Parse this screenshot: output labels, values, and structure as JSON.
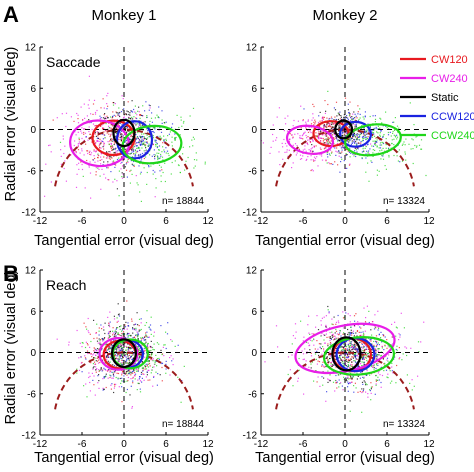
{
  "chart_data": {
    "type": "scatter",
    "panel_letters": [
      "A",
      "B"
    ],
    "column_titles": [
      "Monkey 1",
      "Monkey 2"
    ],
    "xlabel": "Tangential error (visual deg)",
    "ylabel": "Radial error (visual deg)",
    "xlim": [
      -12,
      12
    ],
    "ylim": [
      -12,
      12
    ],
    "x_ticks": [
      -12,
      -6,
      0,
      6,
      12
    ],
    "y_ticks": [
      -12,
      -6,
      0,
      6,
      12
    ],
    "x_tick_labels": [
      "-12",
      "-6",
      "0",
      "6",
      "12"
    ],
    "y_tick_labels": [
      "-12",
      "-6",
      "0",
      "6",
      "12"
    ],
    "grid": false,
    "legend": {
      "location": "top-right of Monkey 2 saccade panel",
      "entries": [
        {
          "label": "CW120",
          "color": "#e8191f"
        },
        {
          "label": "CW240",
          "color": "#e81ee8"
        },
        {
          "label": "Static",
          "color": "#000000"
        },
        {
          "label": "CCW120",
          "color": "#1a22e0"
        },
        {
          "label": "CCW240",
          "color": "#1fd619"
        }
      ]
    },
    "reference": {
      "description": "dashed dark-red arc",
      "color": "#9b1c1c"
    },
    "panels": [
      {
        "row": "A",
        "column": "Monkey 1",
        "label": "Saccade",
        "n_label": "n= 18844",
        "ellipses": [
          {
            "series": "CW120",
            "cx": -1.5,
            "cy": -1.2,
            "rx": 3.0,
            "ry": 2.5,
            "angle": 0
          },
          {
            "series": "CW240",
            "cx": -3.5,
            "cy": -2.0,
            "rx": 4.2,
            "ry": 3.3,
            "angle": -5
          },
          {
            "series": "Static",
            "cx": 0.0,
            "cy": -0.5,
            "rx": 1.5,
            "ry": 1.9,
            "angle": 0
          },
          {
            "series": "CCW120",
            "cx": 1.5,
            "cy": -1.5,
            "rx": 2.5,
            "ry": 2.7,
            "angle": 0
          },
          {
            "series": "CCW240",
            "cx": 4.0,
            "cy": -2.2,
            "rx": 4.2,
            "ry": 2.7,
            "angle": 5
          }
        ]
      },
      {
        "row": "A",
        "column": "Monkey 2",
        "label": "",
        "n_label": "n= 13324",
        "ellipses": [
          {
            "series": "CW120",
            "cx": -2.0,
            "cy": -0.6,
            "rx": 2.5,
            "ry": 1.8,
            "angle": 0
          },
          {
            "series": "CW240",
            "cx": -5.0,
            "cy": -1.5,
            "rx": 3.3,
            "ry": 2.0,
            "angle": -8
          },
          {
            "series": "Static",
            "cx": -0.2,
            "cy": 0.0,
            "rx": 1.2,
            "ry": 1.3,
            "angle": 0
          },
          {
            "series": "CCW120",
            "cx": 1.5,
            "cy": -0.7,
            "rx": 2.2,
            "ry": 1.8,
            "angle": 0
          },
          {
            "series": "CCW240",
            "cx": 4.0,
            "cy": -1.5,
            "rx": 4.0,
            "ry": 2.2,
            "angle": 8
          }
        ]
      },
      {
        "row": "B",
        "column": "Monkey 1",
        "label": "Reach",
        "n_label": "n= 18844",
        "ellipses": [
          {
            "series": "CW120",
            "cx": -0.6,
            "cy": -0.3,
            "rx": 2.3,
            "ry": 2.0,
            "angle": 0
          },
          {
            "series": "CW240",
            "cx": -0.8,
            "cy": -0.2,
            "rx": 2.7,
            "ry": 2.3,
            "angle": 0
          },
          {
            "series": "Static",
            "cx": 0.0,
            "cy": -0.1,
            "rx": 1.7,
            "ry": 2.0,
            "angle": 0
          },
          {
            "series": "CCW120",
            "cx": 0.5,
            "cy": -0.2,
            "rx": 2.2,
            "ry": 2.0,
            "angle": 0
          },
          {
            "series": "CCW240",
            "cx": 0.9,
            "cy": -0.2,
            "rx": 2.5,
            "ry": 2.1,
            "angle": 0
          }
        ]
      },
      {
        "row": "B",
        "column": "Monkey 2",
        "label": "",
        "n_label": "n= 13324",
        "ellipses": [
          {
            "series": "CW120",
            "cx": 1.0,
            "cy": -0.3,
            "rx": 2.7,
            "ry": 2.4,
            "angle": 0
          },
          {
            "series": "CW240",
            "cx": 0.0,
            "cy": 0.6,
            "rx": 7.2,
            "ry": 3.3,
            "angle": 12
          },
          {
            "series": "Static",
            "cx": 0.2,
            "cy": -0.2,
            "rx": 2.0,
            "ry": 2.4,
            "angle": 0
          },
          {
            "series": "CCW120",
            "cx": 1.5,
            "cy": -0.3,
            "rx": 2.7,
            "ry": 2.4,
            "angle": 0
          },
          {
            "series": "CCW240",
            "cx": 2.0,
            "cy": -0.5,
            "rx": 5.0,
            "ry": 2.7,
            "angle": 5
          }
        ]
      }
    ],
    "scatter_clouds": [
      {
        "series": "CW120",
        "panel": 0,
        "cx": -1.5,
        "cy": -1.2,
        "sx": 2.5,
        "sy": 2.3
      },
      {
        "series": "CW240",
        "panel": 0,
        "cx": -3.5,
        "cy": -2.0,
        "sx": 3.5,
        "sy": 3.0
      },
      {
        "series": "Static",
        "panel": 0,
        "cx": 0.0,
        "cy": -0.5,
        "sx": 1.8,
        "sy": 2.0
      },
      {
        "series": "CCW120",
        "panel": 0,
        "cx": 1.5,
        "cy": -1.5,
        "sx": 2.4,
        "sy": 2.4
      },
      {
        "series": "CCW240",
        "panel": 0,
        "cx": 4.0,
        "cy": -2.2,
        "sx": 3.5,
        "sy": 2.6
      },
      {
        "series": "CW120",
        "panel": 1,
        "cx": -2.0,
        "cy": -0.6,
        "sx": 2.3,
        "sy": 1.8
      },
      {
        "series": "CW240",
        "panel": 1,
        "cx": -5.0,
        "cy": -1.5,
        "sx": 3.0,
        "sy": 1.9
      },
      {
        "series": "Static",
        "panel": 1,
        "cx": -0.2,
        "cy": 0.0,
        "sx": 1.4,
        "sy": 1.4
      },
      {
        "series": "CCW120",
        "panel": 1,
        "cx": 1.5,
        "cy": -0.7,
        "sx": 2.2,
        "sy": 1.8
      },
      {
        "series": "CCW240",
        "panel": 1,
        "cx": 4.0,
        "cy": -1.5,
        "sx": 3.3,
        "sy": 2.0
      },
      {
        "series": "CW120",
        "panel": 2,
        "cx": -0.6,
        "cy": -0.3,
        "sx": 2.5,
        "sy": 2.2
      },
      {
        "series": "CW240",
        "panel": 2,
        "cx": -0.8,
        "cy": -0.2,
        "sx": 3.0,
        "sy": 2.5
      },
      {
        "series": "Static",
        "panel": 2,
        "cx": 0.0,
        "cy": -0.1,
        "sx": 2.2,
        "sy": 2.2
      },
      {
        "series": "CCW120",
        "panel": 2,
        "cx": 0.5,
        "cy": -0.2,
        "sx": 2.4,
        "sy": 2.2
      },
      {
        "series": "CCW240",
        "panel": 2,
        "cx": 0.9,
        "cy": -0.2,
        "sx": 2.8,
        "sy": 2.3
      },
      {
        "series": "CW120",
        "panel": 3,
        "cx": 1.0,
        "cy": -0.3,
        "sx": 2.6,
        "sy": 2.2
      },
      {
        "series": "CW240",
        "panel": 3,
        "cx": 0.0,
        "cy": 0.6,
        "sx": 4.5,
        "sy": 2.8
      },
      {
        "series": "Static",
        "panel": 3,
        "cx": 0.2,
        "cy": -0.2,
        "sx": 2.2,
        "sy": 2.3
      },
      {
        "series": "CCW120",
        "panel": 3,
        "cx": 1.5,
        "cy": -0.3,
        "sx": 2.6,
        "sy": 2.2
      },
      {
        "series": "CCW240",
        "panel": 3,
        "cx": 2.0,
        "cy": -0.5,
        "sx": 4.0,
        "sy": 2.4
      }
    ]
  }
}
